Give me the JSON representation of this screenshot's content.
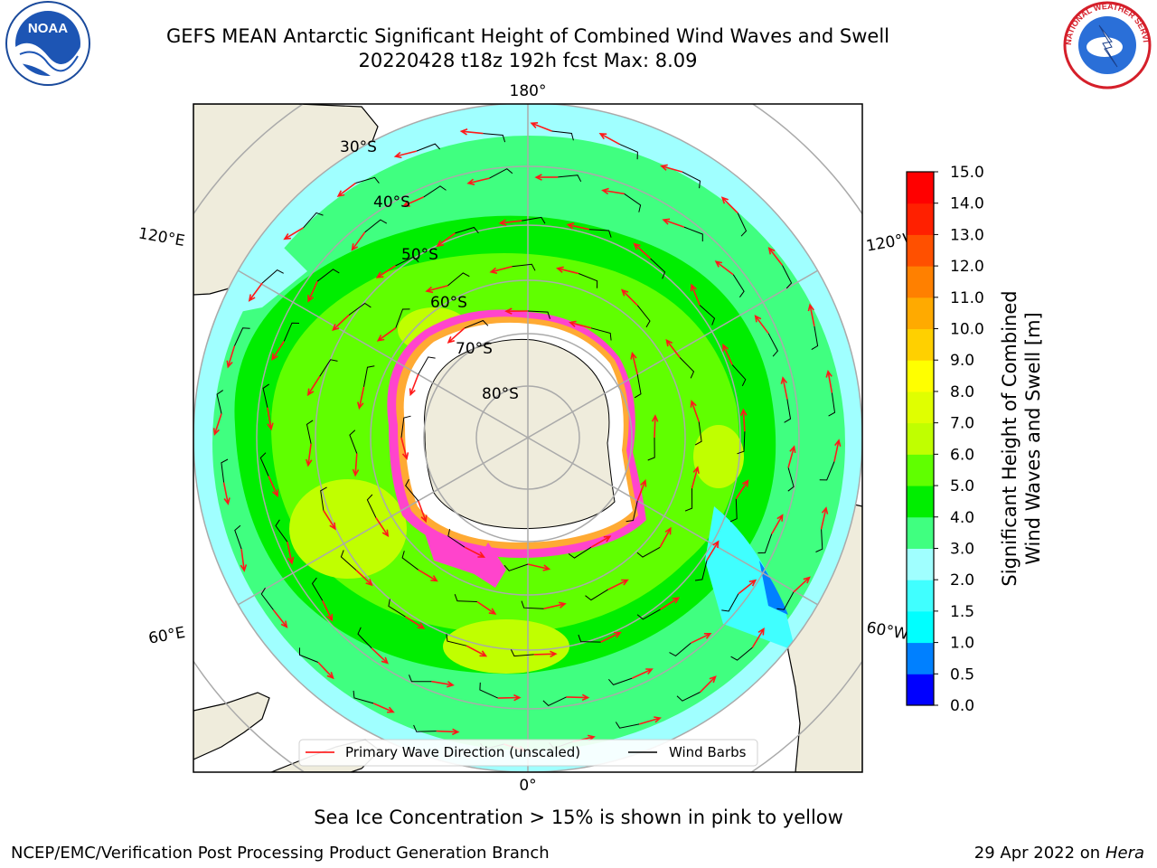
{
  "header": {
    "title": "GEFS MEAN Antarctic Significant Height of Combined Wind Waves and Swell",
    "subtitle": "20220428 t18z 192h fcst   Max: 8.09"
  },
  "map": {
    "projection": "south-polar-stereographic",
    "longitude_labels": [
      "180°",
      "0°",
      "120°E",
      "120°W",
      "60°E",
      "60°W"
    ],
    "latitude_labels": [
      "30°S",
      "40°S",
      "50°S",
      "60°S",
      "70°S",
      "80°S"
    ],
    "land_color": "#efecdc",
    "sea_ice_colors": [
      "#ff44cc",
      "#ffaa33",
      "#ffee55"
    ],
    "legend": {
      "wave_label": "Primary Wave Direction (unscaled)",
      "wind_label": "Wind Barbs"
    }
  },
  "colorbar": {
    "label_line1": "Significant Height of Combined",
    "label_line2": "Wind Waves and Swell [m]",
    "ticks": [
      "0.0",
      "0.5",
      "1.0",
      "1.5",
      "2.0",
      "3.0",
      "4.0",
      "5.0",
      "6.0",
      "7.0",
      "8.0",
      "9.0",
      "10.0",
      "11.0",
      "12.0",
      "13.0",
      "14.0",
      "15.0"
    ],
    "colors": [
      "#0000ff",
      "#0080ff",
      "#00ffff",
      "#40ffff",
      "#a0ffff",
      "#40ff80",
      "#00ee00",
      "#60ff00",
      "#c0ff00",
      "#e0ff00",
      "#ffff00",
      "#ffd000",
      "#ffaa00",
      "#ff8000",
      "#ff5000",
      "#ff2000",
      "#ff0000"
    ]
  },
  "footer": {
    "ice_note": "Sea Ice Concentration > 15% is shown in pink to yellow",
    "producer": "NCEP/EMC/Verification Post Processing Product Generation Branch",
    "date_prefix": "29 Apr 2022 on ",
    "machine": "Hera"
  },
  "logos": {
    "noaa_text": "NOAA",
    "nws_text": "NATIONAL WEATHER SERVICE"
  }
}
